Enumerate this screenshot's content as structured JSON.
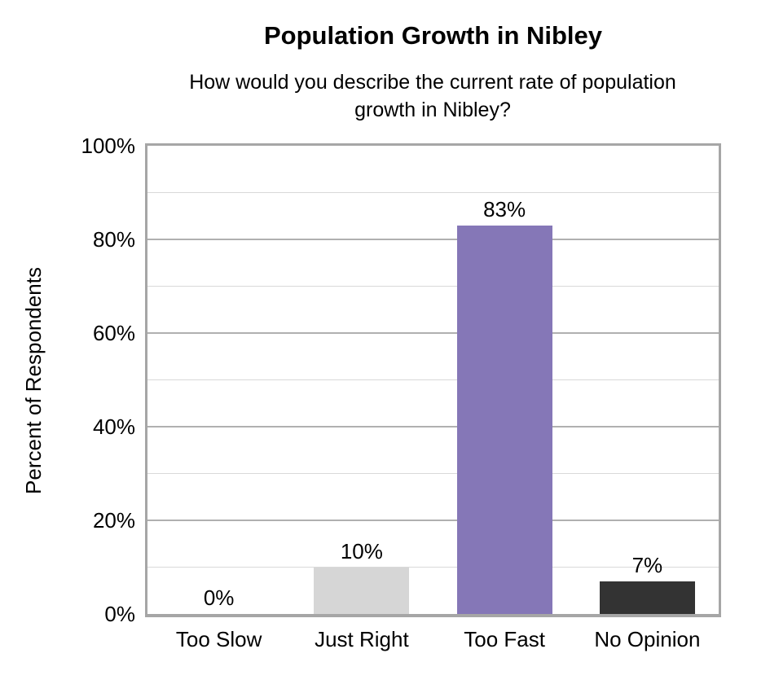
{
  "chart_data": {
    "type": "bar",
    "title": "Population Growth in Nibley",
    "subtitle": "How would you describe the current rate of population growth in Nibley?",
    "ylabel": "Percent of Respondents",
    "xlabel": "",
    "categories": [
      "Too Slow",
      "Just Right",
      "Too Fast",
      "No Opinion"
    ],
    "values": [
      0,
      10,
      83,
      7
    ],
    "data_labels": [
      "0%",
      "10%",
      "83%",
      "7%"
    ],
    "bar_colors": [
      null,
      "#d6d6d6",
      "#8577b7",
      "#333333"
    ],
    "ylim": [
      0,
      100
    ],
    "ytick_step_major": 20,
    "ytick_step_minor": 10,
    "ytick_labels": [
      "0%",
      "20%",
      "40%",
      "60%",
      "80%",
      "100%"
    ],
    "grid": "horizontal",
    "legend": "none",
    "colors": {
      "plot_border": "#a6a6a6",
      "grid_major": "#b0b0b0",
      "grid_minor": "#d9d9d9",
      "text": "#000000",
      "background": "#ffffff"
    }
  }
}
